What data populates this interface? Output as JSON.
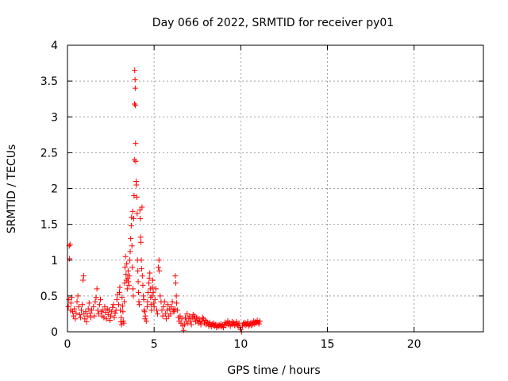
{
  "chart_data": {
    "type": "scatter",
    "title": "Day 066 of 2022, SRMTID for receiver py01",
    "xlabel": "GPS time / hours",
    "ylabel": "SRMTID / TECUs",
    "xlim": [
      0,
      24
    ],
    "ylim": [
      0,
      4
    ],
    "xticks": [
      0,
      5,
      10,
      15,
      20
    ],
    "yticks": [
      0,
      0.5,
      1,
      1.5,
      2,
      2.5,
      3,
      3.5,
      4
    ],
    "xtick_labels": [
      "0",
      "5",
      "10",
      "15",
      "20"
    ],
    "ytick_labels": [
      "0",
      "0.5",
      "1",
      "1.5",
      "2",
      "2.5",
      "3",
      "3.5",
      "4"
    ],
    "grid": true,
    "marker": "+",
    "series_color": "#ff0000",
    "points": [
      [
        0.05,
        0.35
      ],
      [
        0.08,
        0.45
      ],
      [
        0.1,
        1.2
      ],
      [
        0.12,
        1.02
      ],
      [
        0.15,
        1.22
      ],
      [
        0.18,
        0.3
      ],
      [
        0.2,
        0.4
      ],
      [
        0.25,
        0.48
      ],
      [
        0.3,
        0.28
      ],
      [
        0.35,
        0.22
      ],
      [
        0.4,
        0.32
      ],
      [
        0.45,
        0.18
      ],
      [
        0.5,
        0.26
      ],
      [
        0.55,
        0.42
      ],
      [
        0.6,
        0.5
      ],
      [
        0.65,
        0.35
      ],
      [
        0.7,
        0.24
      ],
      [
        0.75,
        0.2
      ],
      [
        0.8,
        0.3
      ],
      [
        0.85,
        0.38
      ],
      [
        0.9,
        0.72
      ],
      [
        0.93,
        0.78
      ],
      [
        0.95,
        0.25
      ],
      [
        1.0,
        0.18
      ],
      [
        1.05,
        0.28
      ],
      [
        1.1,
        0.14
      ],
      [
        1.15,
        0.22
      ],
      [
        1.2,
        0.32
      ],
      [
        1.25,
        0.4
      ],
      [
        1.3,
        0.26
      ],
      [
        1.35,
        0.2
      ],
      [
        1.4,
        0.3
      ],
      [
        1.5,
        0.35
      ],
      [
        1.55,
        0.22
      ],
      [
        1.6,
        0.42
      ],
      [
        1.65,
        0.48
      ],
      [
        1.7,
        0.6
      ],
      [
        1.75,
        0.3
      ],
      [
        1.8,
        0.25
      ],
      [
        1.85,
        0.38
      ],
      [
        1.9,
        0.45
      ],
      [
        1.95,
        0.28
      ],
      [
        2.0,
        0.22
      ],
      [
        2.05,
        0.3
      ],
      [
        2.1,
        0.2
      ],
      [
        2.15,
        0.35
      ],
      [
        2.2,
        0.27
      ],
      [
        2.25,
        0.18
      ],
      [
        2.3,
        0.32
      ],
      [
        2.35,
        0.24
      ],
      [
        2.4,
        0.3
      ],
      [
        2.45,
        0.16
      ],
      [
        2.5,
        0.22
      ],
      [
        2.55,
        0.28
      ],
      [
        2.6,
        0.34
      ],
      [
        2.65,
        0.38
      ],
      [
        2.7,
        0.2
      ],
      [
        2.75,
        0.26
      ],
      [
        2.8,
        0.3
      ],
      [
        2.85,
        0.45
      ],
      [
        2.9,
        0.52
      ],
      [
        2.95,
        0.38
      ],
      [
        3.0,
        0.55
      ],
      [
        3.02,
        0.62
      ],
      [
        3.05,
        0.3
      ],
      [
        3.08,
        0.14
      ],
      [
        3.1,
        0.2
      ],
      [
        3.12,
        0.1
      ],
      [
        3.15,
        0.48
      ],
      [
        3.18,
        0.36
      ],
      [
        3.2,
        0.28
      ],
      [
        3.22,
        0.15
      ],
      [
        3.25,
        0.12
      ],
      [
        3.28,
        0.42
      ],
      [
        3.3,
        0.68
      ],
      [
        3.32,
        0.9
      ],
      [
        3.35,
        1.05
      ],
      [
        3.38,
        0.8
      ],
      [
        3.4,
        0.72
      ],
      [
        3.42,
        0.95
      ],
      [
        3.45,
        0.6
      ],
      [
        3.48,
        0.75
      ],
      [
        3.5,
        0.85
      ],
      [
        3.52,
        0.7
      ],
      [
        3.55,
        0.65
      ],
      [
        3.58,
        0.78
      ],
      [
        3.6,
        1.0
      ],
      [
        3.62,
        1.12
      ],
      [
        3.65,
        1.3
      ],
      [
        3.68,
        1.48
      ],
      [
        3.7,
        1.6
      ],
      [
        3.72,
        1.2
      ],
      [
        3.74,
        0.9
      ],
      [
        3.76,
        1.68
      ],
      [
        3.78,
        0.6
      ],
      [
        3.8,
        0.5
      ],
      [
        3.82,
        1.58
      ],
      [
        3.84,
        1.9
      ],
      [
        3.86,
        2.4
      ],
      [
        3.87,
        3.18
      ],
      [
        3.88,
        3.65
      ],
      [
        3.9,
        3.52
      ],
      [
        3.91,
        3.4
      ],
      [
        3.92,
        3.16
      ],
      [
        3.93,
        2.63
      ],
      [
        3.94,
        2.38
      ],
      [
        3.96,
        2.1
      ],
      [
        3.98,
        2.05
      ],
      [
        4.0,
        1.88
      ],
      [
        4.02,
        1.65
      ],
      [
        4.04,
        1.0
      ],
      [
        4.06,
        0.85
      ],
      [
        4.08,
        0.7
      ],
      [
        4.1,
        0.55
      ],
      [
        4.12,
        0.42
      ],
      [
        4.15,
        0.38
      ],
      [
        4.18,
        1.7
      ],
      [
        4.2,
        1.58
      ],
      [
        4.22,
        1.32
      ],
      [
        4.24,
        1.25
      ],
      [
        4.26,
        1.0
      ],
      [
        4.28,
        0.88
      ],
      [
        4.3,
        1.74
      ],
      [
        4.32,
        0.78
      ],
      [
        4.35,
        0.65
      ],
      [
        4.38,
        0.5
      ],
      [
        4.4,
        0.45
      ],
      [
        4.42,
        0.3
      ],
      [
        4.45,
        0.28
      ],
      [
        4.48,
        0.18
      ],
      [
        4.5,
        0.22
      ],
      [
        4.55,
        0.15
      ],
      [
        4.6,
        0.35
      ],
      [
        4.62,
        0.42
      ],
      [
        4.65,
        0.55
      ],
      [
        4.7,
        0.68
      ],
      [
        4.72,
        0.75
      ],
      [
        4.75,
        0.82
      ],
      [
        4.78,
        0.6
      ],
      [
        4.8,
        0.48
      ],
      [
        4.82,
        0.38
      ],
      [
        4.85,
        0.3
      ],
      [
        4.88,
        0.5
      ],
      [
        4.9,
        0.62
      ],
      [
        4.92,
        0.72
      ],
      [
        4.95,
        0.55
      ],
      [
        4.98,
        0.4
      ],
      [
        5.0,
        0.35
      ],
      [
        5.05,
        0.45
      ],
      [
        5.1,
        0.6
      ],
      [
        5.15,
        0.3
      ],
      [
        5.2,
        0.25
      ],
      [
        5.25,
        0.9
      ],
      [
        5.28,
        1.0
      ],
      [
        5.3,
        0.85
      ],
      [
        5.35,
        0.5
      ],
      [
        5.4,
        0.42
      ],
      [
        5.45,
        0.3
      ],
      [
        5.5,
        0.22
      ],
      [
        5.55,
        0.35
      ],
      [
        5.6,
        0.42
      ],
      [
        5.65,
        0.25
      ],
      [
        5.7,
        0.18
      ],
      [
        5.75,
        0.3
      ],
      [
        5.8,
        0.38
      ],
      [
        5.85,
        0.22
      ],
      [
        5.9,
        0.32
      ],
      [
        5.95,
        0.25
      ],
      [
        6.0,
        0.35
      ],
      [
        6.05,
        0.42
      ],
      [
        6.1,
        0.3
      ],
      [
        6.15,
        0.28
      ],
      [
        6.2,
        0.32
      ],
      [
        6.22,
        0.78
      ],
      [
        6.25,
        0.68
      ],
      [
        6.28,
        0.5
      ],
      [
        6.3,
        0.4
      ],
      [
        6.35,
        0.3
      ],
      [
        6.4,
        0.2
      ],
      [
        6.45,
        0.15
      ],
      [
        6.5,
        0.22
      ],
      [
        6.55,
        0.12
      ],
      [
        6.6,
        0.18
      ],
      [
        6.65,
        0.08
      ],
      [
        6.7,
        0.02
      ],
      [
        6.75,
        0.1
      ],
      [
        6.8,
        0.2
      ],
      [
        6.85,
        0.15
      ],
      [
        6.9,
        0.25
      ],
      [
        6.95,
        0.12
      ],
      [
        7.0,
        0.18
      ],
      [
        7.05,
        0.22
      ],
      [
        7.1,
        0.15
      ],
      [
        7.15,
        0.1
      ],
      [
        7.2,
        0.2
      ],
      [
        7.25,
        0.24
      ],
      [
        7.3,
        0.18
      ],
      [
        7.35,
        0.22
      ],
      [
        7.4,
        0.14
      ],
      [
        7.45,
        0.2
      ],
      [
        7.5,
        0.16
      ],
      [
        7.55,
        0.12
      ],
      [
        7.6,
        0.18
      ],
      [
        7.65,
        0.14
      ],
      [
        7.7,
        0.1
      ],
      [
        7.75,
        0.15
      ],
      [
        7.8,
        0.2
      ],
      [
        7.85,
        0.18
      ],
      [
        7.9,
        0.12
      ],
      [
        7.95,
        0.16
      ],
      [
        8.0,
        0.1
      ],
      [
        8.05,
        0.14
      ],
      [
        8.1,
        0.12
      ],
      [
        8.15,
        0.08
      ],
      [
        8.2,
        0.13
      ],
      [
        8.25,
        0.1
      ],
      [
        8.3,
        0.07
      ],
      [
        8.35,
        0.11
      ],
      [
        8.4,
        0.09
      ],
      [
        8.45,
        0.12
      ],
      [
        8.5,
        0.08
      ],
      [
        8.55,
        0.1
      ],
      [
        8.6,
        0.06
      ],
      [
        8.65,
        0.09
      ],
      [
        8.7,
        0.07
      ],
      [
        8.75,
        0.1
      ],
      [
        8.8,
        0.08
      ],
      [
        8.85,
        0.11
      ],
      [
        8.9,
        0.07
      ],
      [
        8.95,
        0.09
      ],
      [
        9.0,
        0.06
      ],
      [
        9.05,
        0.1
      ],
      [
        9.1,
        0.13
      ],
      [
        9.15,
        0.09
      ],
      [
        9.2,
        0.12
      ],
      [
        9.25,
        0.15
      ],
      [
        9.3,
        0.1
      ],
      [
        9.35,
        0.13
      ],
      [
        9.4,
        0.08
      ],
      [
        9.45,
        0.11
      ],
      [
        9.5,
        0.14
      ],
      [
        9.55,
        0.1
      ],
      [
        9.6,
        0.13
      ],
      [
        9.65,
        0.09
      ],
      [
        9.7,
        0.11
      ],
      [
        9.75,
        0.14
      ],
      [
        9.8,
        0.1
      ],
      [
        9.85,
        0.08
      ],
      [
        9.9,
        0.12
      ],
      [
        9.95,
        0.06
      ],
      [
        10.0,
        0.03
      ],
      [
        10.05,
        0.0
      ],
      [
        10.1,
        0.08
      ],
      [
        10.15,
        0.12
      ],
      [
        10.2,
        0.1
      ],
      [
        10.25,
        0.13
      ],
      [
        10.3,
        0.09
      ],
      [
        10.35,
        0.11
      ],
      [
        10.4,
        0.14
      ],
      [
        10.45,
        0.08
      ],
      [
        10.5,
        0.1
      ],
      [
        10.55,
        0.12
      ],
      [
        10.6,
        0.09
      ],
      [
        10.65,
        0.13
      ],
      [
        10.7,
        0.1
      ],
      [
        10.75,
        0.15
      ],
      [
        10.8,
        0.11
      ],
      [
        10.85,
        0.14
      ],
      [
        10.9,
        0.12
      ],
      [
        10.95,
        0.16
      ],
      [
        11.0,
        0.13
      ],
      [
        11.05,
        0.11
      ],
      [
        11.1,
        0.15
      ]
    ]
  }
}
